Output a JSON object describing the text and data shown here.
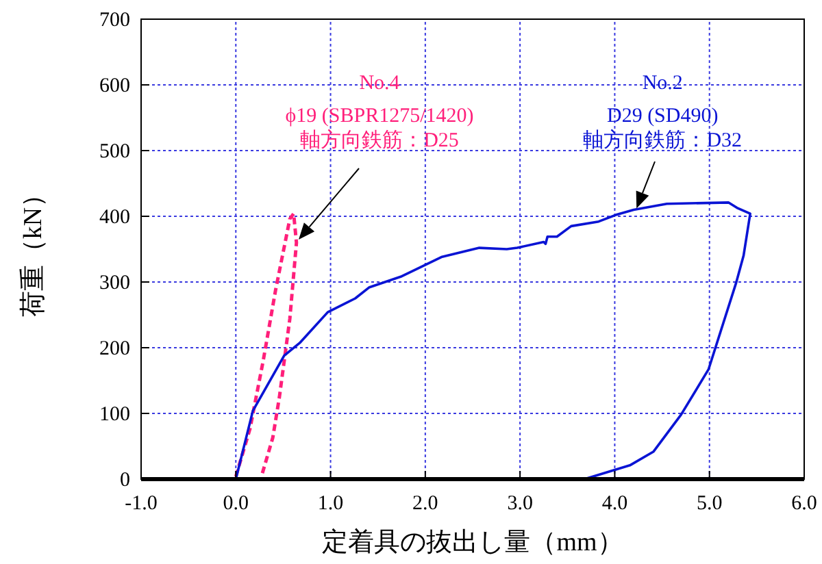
{
  "chart_data": {
    "type": "line",
    "xlabel": "定着具の抜出し量（mm）",
    "ylabel": "荷重（kN）",
    "xlim": [
      -1,
      6
    ],
    "ylim": [
      0,
      700
    ],
    "xticks": [
      {
        "value": -1,
        "label": "-1.0"
      },
      {
        "value": 0,
        "label": "0.0"
      },
      {
        "value": 1,
        "label": "1.0"
      },
      {
        "value": 2,
        "label": "2.0"
      },
      {
        "value": 3,
        "label": "3.0"
      },
      {
        "value": 4,
        "label": "4.0"
      },
      {
        "value": 5,
        "label": "5.0"
      },
      {
        "value": 6,
        "label": "6.0"
      }
    ],
    "yticks": [
      0,
      100,
      200,
      300,
      400,
      500,
      600,
      700
    ],
    "grid": true,
    "series": [
      {
        "name": "No.4",
        "color": "#ff1f7a",
        "line_style": "dashed",
        "x": [
          0,
          0.15,
          0.29,
          0.42,
          0.57,
          0.61,
          0.64,
          0.57,
          0.46,
          0.39,
          0.27
        ],
        "values": [
          4,
          77,
          181,
          288,
          396,
          404,
          360,
          244,
          125,
          63,
          4
        ]
      },
      {
        "name": "No.2",
        "color": "#0a14d4",
        "line_style": "solid",
        "x": [
          0,
          0.18,
          0.51,
          0.68,
          0.97,
          1.26,
          1.41,
          1.74,
          2.17,
          2.57,
          2.86,
          2.97,
          3.25,
          3.27,
          3.29,
          3.39,
          3.54,
          3.83,
          4.01,
          4.2,
          4.55,
          5.2,
          5.29,
          5.43,
          5.36,
          5.28,
          4.99,
          4.7,
          4.41,
          4.16,
          3.68
        ],
        "values": [
          0,
          104,
          188,
          208,
          254,
          275,
          292,
          308,
          338,
          352,
          350,
          352,
          361,
          358,
          369,
          369,
          385,
          392,
          402,
          410,
          419,
          421,
          413,
          404,
          340,
          298,
          167,
          98,
          42,
          21,
          0
        ]
      }
    ],
    "annotations": [
      "ϕ19 (SBPR1275/1420)\n軸方向鉄筋：D25",
      {
        "text": "D29 (SD490)\n軸方向鉄筋：D32",
        "x": 4.23,
        "y": 412
      }
    ]
  }
}
